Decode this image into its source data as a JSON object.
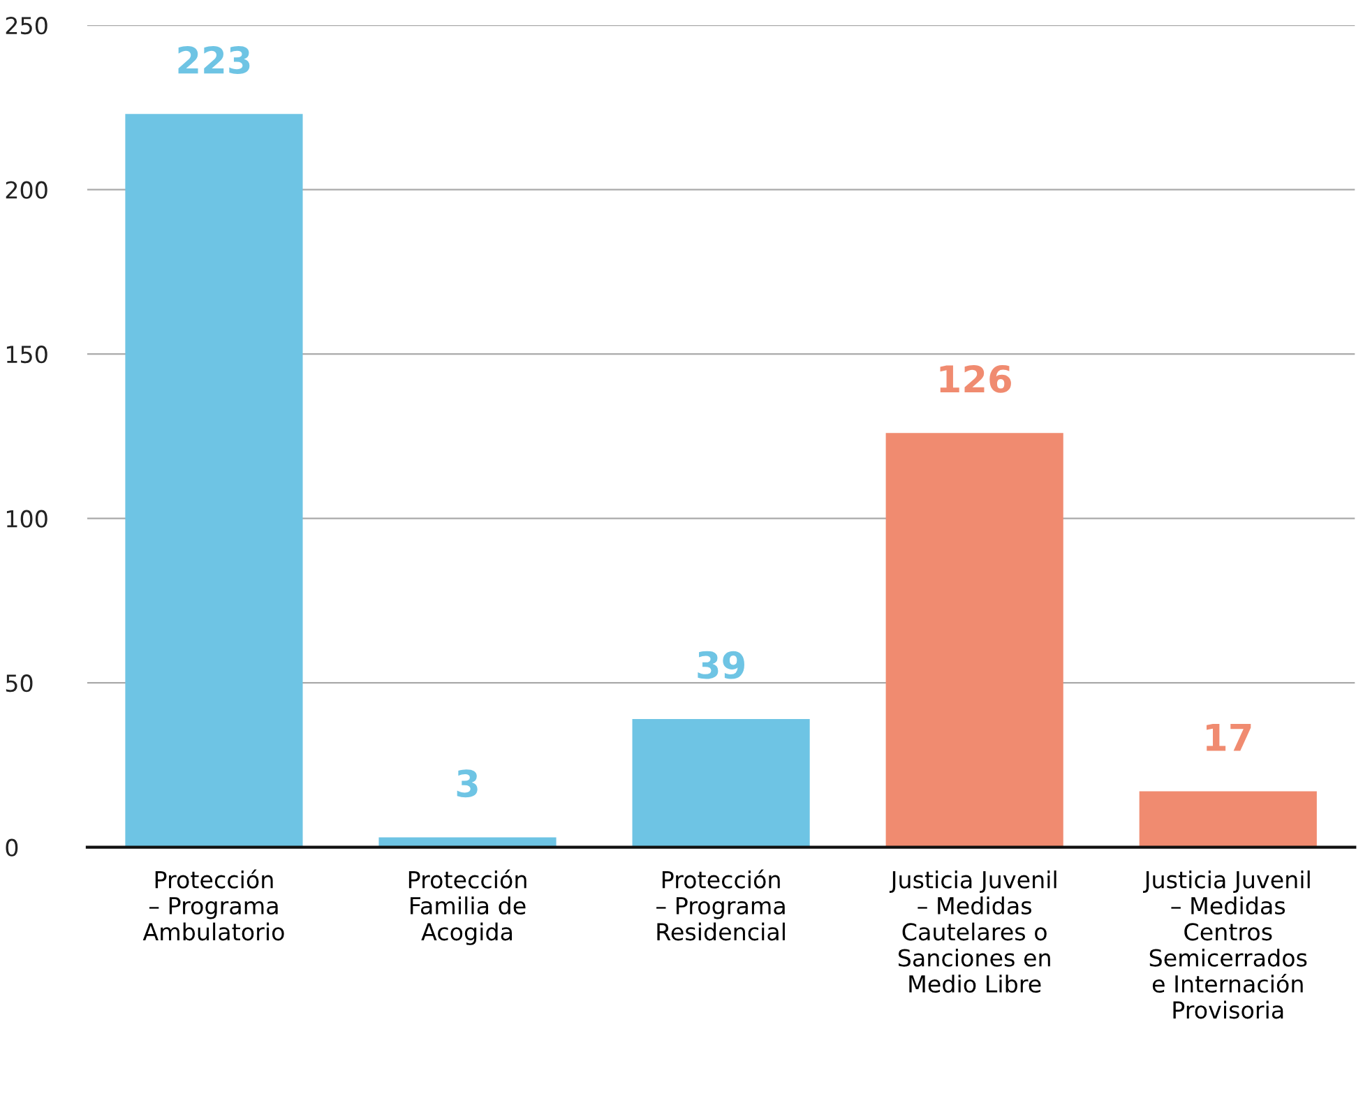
{
  "chart_data": {
    "type": "bar",
    "categories": [
      "Protección\n– Programa\nAmbulatorio",
      "Protección\nFamilia de\nAcogida",
      "Protección\n– Programa\nResidencial",
      "Justicia Juvenil\n– Medidas\nCautelares o\nSanciones en\nMedio Libre",
      "Justicia Juvenil\n– Medidas\nCentros\nSemicerrados\ne Internación\nProvisoria"
    ],
    "values": [
      223,
      3,
      39,
      126,
      17
    ],
    "colors": [
      "#6ec4e4",
      "#6ec4e4",
      "#6ec4e4",
      "#f08b70",
      "#f08b70"
    ],
    "ylim": [
      0,
      250
    ],
    "yticks": [
      0,
      50,
      100,
      150,
      200,
      250
    ],
    "grid": "y",
    "data_labels": true
  }
}
